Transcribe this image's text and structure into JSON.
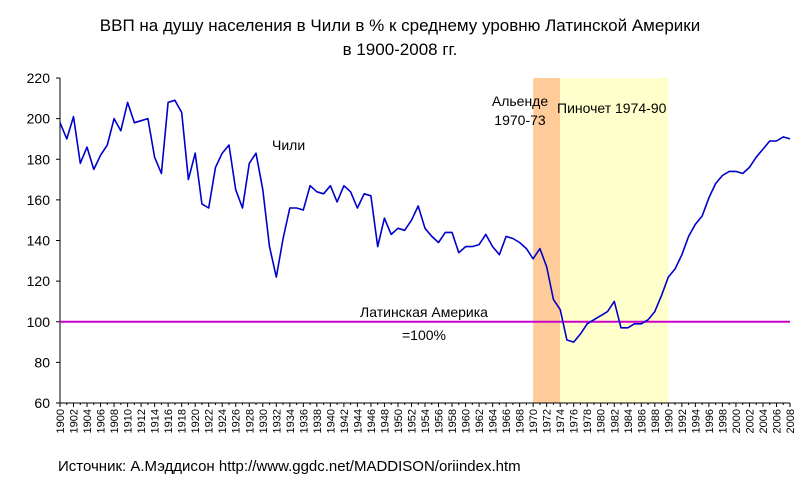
{
  "chart_data": {
    "type": "line",
    "title": "ВВП на душу населения в Чили в % к среднему уровню Латинской Америки",
    "subtitle": "в 1900-2008 гг.",
    "source": "Источник: А.Мэддисон http://www.ggdc.net/MADDISON/oriindex.htm",
    "xlim": [
      1900,
      2008
    ],
    "ylim": [
      60,
      220
    ],
    "y_ticks": [
      60,
      80,
      100,
      120,
      140,
      160,
      180,
      200,
      220
    ],
    "x_ticks": [
      1900,
      1902,
      1904,
      1906,
      1908,
      1910,
      1912,
      1914,
      1916,
      1918,
      1920,
      1922,
      1924,
      1926,
      1928,
      1930,
      1932,
      1934,
      1936,
      1938,
      1940,
      1942,
      1944,
      1946,
      1948,
      1950,
      1952,
      1954,
      1956,
      1958,
      1960,
      1962,
      1964,
      1966,
      1968,
      1970,
      1972,
      1974,
      1976,
      1978,
      1980,
      1982,
      1984,
      1986,
      1988,
      1990,
      1992,
      1994,
      1996,
      1998,
      2000,
      2002,
      2004,
      2006,
      2008
    ],
    "grid": "none",
    "colors": {
      "series": "#0000cc",
      "reference": "#cc00cc",
      "allende": "#ffcc99",
      "pinochet": "#ffffcc"
    },
    "series": [
      {
        "name": "Чили",
        "x": [
          1900,
          1901,
          1902,
          1903,
          1904,
          1905,
          1906,
          1907,
          1908,
          1909,
          1910,
          1911,
          1912,
          1913,
          1914,
          1915,
          1916,
          1917,
          1918,
          1919,
          1920,
          1921,
          1922,
          1923,
          1924,
          1925,
          1926,
          1927,
          1928,
          1929,
          1930,
          1931,
          1932,
          1933,
          1934,
          1935,
          1936,
          1937,
          1938,
          1939,
          1940,
          1941,
          1942,
          1943,
          1944,
          1945,
          1946,
          1947,
          1948,
          1949,
          1950,
          1951,
          1952,
          1953,
          1954,
          1955,
          1956,
          1957,
          1958,
          1959,
          1960,
          1961,
          1962,
          1963,
          1964,
          1965,
          1966,
          1967,
          1968,
          1969,
          1970,
          1971,
          1972,
          1973,
          1974,
          1975,
          1976,
          1977,
          1978,
          1979,
          1980,
          1981,
          1982,
          1983,
          1984,
          1985,
          1986,
          1987,
          1988,
          1989,
          1990,
          1991,
          1992,
          1993,
          1994,
          1995,
          1996,
          1997,
          1998,
          1999,
          2000,
          2001,
          2002,
          2003,
          2004,
          2005,
          2006,
          2007,
          2008
        ],
        "y": [
          198,
          190,
          201,
          178,
          186,
          175,
          182,
          187,
          200,
          194,
          208,
          198,
          199,
          200,
          181,
          173,
          208,
          209,
          203,
          170,
          183,
          158,
          156,
          176,
          183,
          187,
          165,
          156,
          178,
          183,
          165,
          137,
          122,
          141,
          156,
          156,
          155,
          167,
          164,
          163,
          167,
          159,
          167,
          164,
          156,
          163,
          162,
          137,
          151,
          143,
          146,
          145,
          150,
          157,
          146,
          142,
          139,
          144,
          144,
          134,
          137,
          137,
          138,
          143,
          137,
          133,
          142,
          141,
          139,
          136,
          131,
          136,
          127,
          111,
          106,
          91,
          90,
          94,
          99,
          101,
          103,
          105,
          110,
          97,
          97,
          99,
          99,
          101,
          105,
          113,
          122,
          126,
          133,
          142,
          148,
          152,
          161,
          168,
          172,
          174,
          174,
          173,
          176,
          181,
          185,
          189,
          189,
          191,
          190
        ]
      }
    ],
    "reference_line": {
      "y": 100,
      "label_line1": "Латинская Америка",
      "label_line2": "=100%"
    },
    "bands": [
      {
        "from": 1970,
        "to": 1974,
        "label_line1": "Альенде",
        "label_line2": "1970-73"
      },
      {
        "from": 1974,
        "to": 1990,
        "label_line1": "Пиночет 1974-90"
      }
    ]
  }
}
